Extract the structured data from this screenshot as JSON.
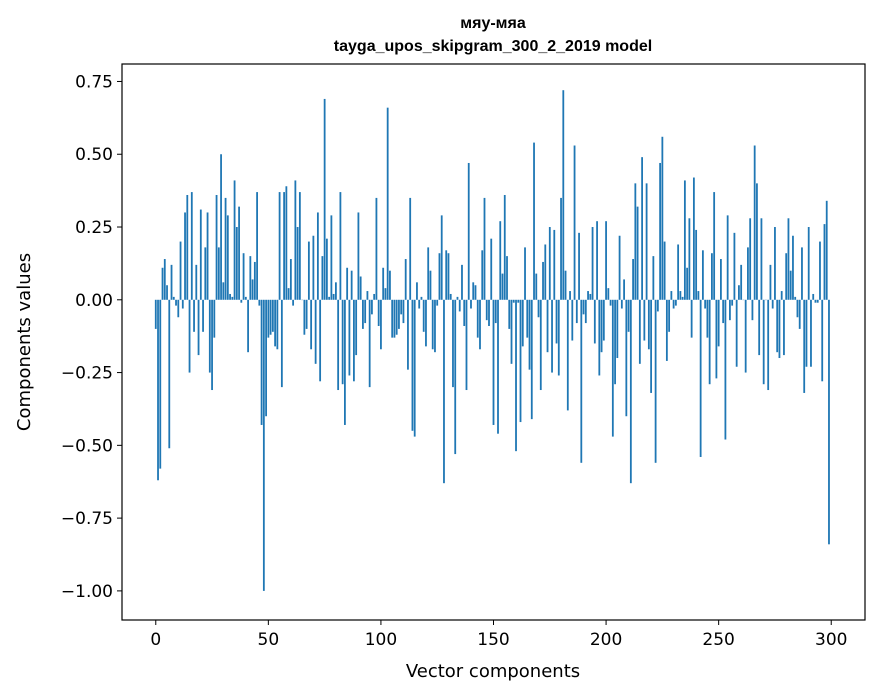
{
  "chart_data": {
    "type": "bar",
    "title": "мяу-мяа",
    "subtitle": "tayga_upos_skipgram_300_2_2019 model",
    "xlabel": "Vector components",
    "ylabel": "Components values",
    "xlim": [
      -15,
      315
    ],
    "ylim": [
      -1.1,
      0.81
    ],
    "xticks": [
      0,
      50,
      100,
      150,
      200,
      250,
      300
    ],
    "xtick_labels": [
      "0",
      "50",
      "100",
      "150",
      "200",
      "250",
      "300"
    ],
    "yticks": [
      0.75,
      0.5,
      0.25,
      0.0,
      -0.25,
      -0.5,
      -0.75,
      -1.0
    ],
    "ytick_labels": [
      "0.75",
      "0.50",
      "0.25",
      "0.00",
      "−0.25",
      "−0.50",
      "−0.75",
      "−1.00"
    ],
    "grid": false,
    "bar_color": "#1f77b4",
    "values": [
      -0.1,
      -0.62,
      -0.58,
      0.11,
      0.14,
      0.05,
      -0.51,
      0.12,
      0.01,
      -0.02,
      -0.06,
      0.2,
      -0.03,
      0.3,
      0.36,
      -0.25,
      0.37,
      -0.11,
      0.12,
      -0.19,
      0.31,
      -0.11,
      0.18,
      0.3,
      -0.25,
      -0.31,
      -0.13,
      0.36,
      0.18,
      0.5,
      0.06,
      0.35,
      0.29,
      0.02,
      0.01,
      0.41,
      0.25,
      0.32,
      -0.01,
      0.16,
      0.01,
      -0.18,
      0.15,
      0.07,
      0.13,
      0.37,
      -0.02,
      -0.43,
      -1.0,
      -0.4,
      -0.13,
      -0.12,
      -0.11,
      -0.16,
      -0.17,
      0.37,
      -0.3,
      0.37,
      0.39,
      0.04,
      0.14,
      -0.02,
      0.41,
      0.25,
      0.37,
      0.0,
      -0.12,
      -0.1,
      0.2,
      -0.17,
      0.22,
      -0.22,
      0.3,
      -0.28,
      0.15,
      0.69,
      0.21,
      0.01,
      0.29,
      0.02,
      0.06,
      -0.31,
      0.37,
      -0.29,
      -0.43,
      0.11,
      -0.26,
      0.1,
      -0.28,
      -0.19,
      0.3,
      0.08,
      -0.1,
      -0.08,
      0.03,
      -0.3,
      -0.05,
      0.02,
      0.35,
      -0.09,
      -0.17,
      0.11,
      0.04,
      0.66,
      0.1,
      -0.13,
      -0.13,
      -0.12,
      -0.1,
      -0.05,
      -0.08,
      0.14,
      -0.24,
      0.35,
      -0.45,
      -0.47,
      0.06,
      -0.03,
      0.01,
      -0.11,
      -0.16,
      0.18,
      0.1,
      -0.17,
      -0.18,
      -0.02,
      0.16,
      0.29,
      -0.63,
      0.17,
      0.16,
      0.02,
      -0.3,
      -0.53,
      0.01,
      -0.04,
      0.12,
      -0.09,
      -0.31,
      0.47,
      -0.03,
      0.06,
      0.05,
      -0.13,
      -0.17,
      0.17,
      0.35,
      -0.07,
      -0.09,
      0.21,
      -0.43,
      -0.08,
      -0.46,
      0.27,
      0.09,
      0.36,
      0.15,
      -0.1,
      -0.22,
      -0.01,
      -0.52,
      -0.01,
      -0.42,
      -0.16,
      0.18,
      -0.13,
      -0.24,
      -0.41,
      0.54,
      0.09,
      -0.06,
      -0.31,
      0.13,
      0.19,
      -0.18,
      0.25,
      -0.25,
      0.24,
      -0.15,
      -0.26,
      0.35,
      0.72,
      0.1,
      -0.38,
      0.03,
      -0.14,
      0.53,
      -0.08,
      0.23,
      -0.56,
      -0.05,
      -0.08,
      0.03,
      0.02,
      0.25,
      -0.15,
      0.27,
      -0.26,
      -0.18,
      -0.14,
      0.27,
      0.04,
      -0.02,
      -0.47,
      -0.29,
      -0.2,
      0.22,
      -0.03,
      0.07,
      -0.4,
      -0.11,
      -0.63,
      0.14,
      0.4,
      0.32,
      -0.22,
      0.49,
      -0.14,
      0.4,
      -0.17,
      -0.32,
      0.15,
      -0.56,
      -0.04,
      0.47,
      0.56,
      0.2,
      -0.21,
      -0.11,
      0.03,
      -0.03,
      -0.02,
      0.19,
      0.03,
      0.01,
      0.41,
      0.11,
      0.28,
      -0.13,
      0.42,
      0.24,
      0.03,
      -0.54,
      0.17,
      -0.03,
      -0.13,
      -0.29,
      0.16,
      0.37,
      -0.27,
      -0.16,
      0.14,
      -0.08,
      -0.48,
      0.29,
      -0.07,
      -0.02,
      0.23,
      -0.23,
      0.05,
      0.12,
      0.0,
      -0.25,
      0.18,
      0.28,
      -0.07,
      0.53,
      0.4,
      -0.19,
      0.28,
      -0.29,
      0.0,
      -0.31,
      0.12,
      -0.03,
      0.25,
      -0.18,
      -0.2,
      0.03,
      -0.19,
      0.16,
      0.28,
      0.1,
      0.22,
      0.01,
      -0.06,
      -0.1,
      0.18,
      -0.32,
      -0.23,
      0.25,
      -0.23,
      0.02,
      -0.01,
      -0.01,
      0.2,
      -0.28,
      0.26,
      0.34,
      -0.84
    ]
  }
}
